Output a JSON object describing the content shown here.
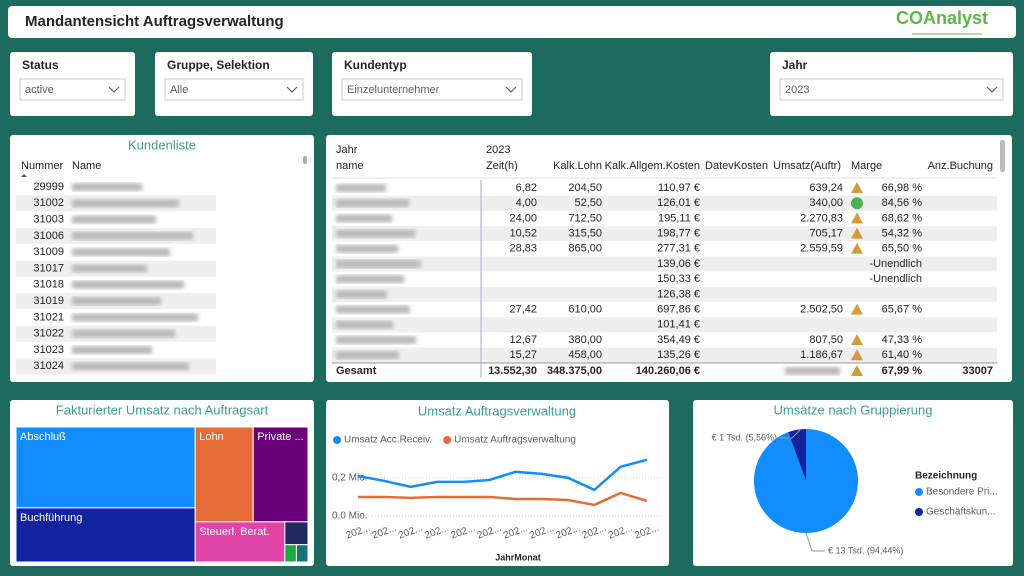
{
  "header": {
    "title": "Mandantensicht Auftragsverwaltung",
    "logo": "COAnalyst"
  },
  "filters": [
    {
      "label": "Status",
      "value": "active"
    },
    {
      "label": "Gruppe, Selektion",
      "value": "Alle"
    },
    {
      "label": "Kundentyp",
      "value": "Einzelunternehmer"
    },
    {
      "label": "Jahr",
      "value": "2023"
    }
  ],
  "customer_list": {
    "title": "Kundenliste",
    "columns": [
      "Nummer",
      "Name"
    ],
    "numbers": [
      29999,
      31002,
      31003,
      31006,
      31009,
      31017,
      31018,
      31019,
      31021,
      31022,
      31023,
      31024
    ]
  },
  "table": {
    "header_top": [
      "Jahr",
      "2023"
    ],
    "columns": [
      "name",
      "Zeit(h)",
      "Kalk.Lohn",
      "Kalk.Allgem.Kosten",
      "DatevKosten",
      "Umsatz(Auftr)",
      "Marge",
      "Anz.Buchung"
    ],
    "rows": [
      [
        "6,82",
        "204,50",
        "110,97 €",
        null,
        "639,24",
        "66,98 %",
        null
      ],
      [
        "4,00",
        "52,50",
        "126,01 €",
        null,
        "340,00",
        "84,56 %",
        null
      ],
      [
        "24,00",
        "712,50",
        "195,11 €",
        null,
        "2.270,83",
        "68,62 %",
        null
      ],
      [
        "10,52",
        "315,50",
        "198,77 €",
        null,
        "705,17",
        "54,32 %",
        null
      ],
      [
        "28,83",
        "865,00",
        "277,31 €",
        null,
        "2.559,59",
        "65,50 %",
        null
      ],
      [
        null,
        null,
        "139,06 €",
        null,
        null,
        "-Unendlich",
        null
      ],
      [
        null,
        null,
        "150,33 €",
        null,
        null,
        "-Unendlich",
        null
      ],
      [
        null,
        null,
        "126,38 €",
        null,
        null,
        null,
        null
      ],
      [
        "27,42",
        "610,00",
        "697,86 €",
        null,
        "2.502,50",
        "65,67 %",
        null
      ],
      [
        null,
        null,
        "101,41 €",
        null,
        null,
        null,
        null
      ],
      [
        "12,67",
        "380,00",
        "354,49 €",
        null,
        "807,50",
        "47,33 %",
        null
      ],
      [
        "15,27",
        "458,00",
        "135,26 €",
        null,
        "1.186,67",
        "61,40 %",
        null
      ]
    ],
    "icons": [
      "triangle",
      "circle",
      "triangle",
      "triangle",
      "triangle",
      null,
      null,
      null,
      "triangle",
      null,
      "triangle",
      "triangle"
    ],
    "total_label": "Gesamt",
    "total": [
      "13.552,30",
      "348.375,00",
      "140.260,06 €",
      null,
      null,
      "67,99 %",
      "33007"
    ],
    "total_icon": "triangle",
    "icon_colors": {
      "triangle": "#D39B3D",
      "circle": "#4CAF50"
    }
  },
  "treemap": {
    "type": "treemap",
    "title": "Fakturierter Umsatz nach Auftragsart",
    "labels": [
      "Abschluß",
      "Buchführung",
      "Lohn",
      "Private ...",
      "Steuerl. Berat.",
      null,
      null,
      null
    ],
    "values": [
      14500,
      9700,
      5500,
      5200,
      3600,
      530,
      200,
      200
    ],
    "colors": [
      "#118DFF",
      "#12239E",
      "#E66C37",
      "#6B007B",
      "#E044A7",
      "#1F2B5E",
      "#1AAB40",
      "#197278"
    ]
  },
  "line_chart": {
    "type": "line",
    "title": "Umsatz Auftragsverwaltung",
    "x_label": "JahrMonat",
    "categories": [
      "202...",
      "202...",
      "202...",
      "202...",
      "202...",
      "202...",
      "202...",
      "202...",
      "202...",
      "202...",
      "202...",
      "202..."
    ],
    "series": [
      {
        "name": "Umsatz Acc.Receiv.",
        "color": "#118DFF",
        "values": [
          210000,
          184000,
          153000,
          179000,
          179000,
          189000,
          232000,
          221000,
          200000,
          137000,
          258000,
          295000
        ]
      },
      {
        "name": "Umsatz Auftragsverwaltung",
        "color": "#E66C37",
        "values": [
          100000,
          100000,
          95000,
          100000,
          100000,
          100000,
          89000,
          89000,
          84000,
          58000,
          121000,
          79000
        ]
      }
    ],
    "ylim": [
      0,
      320000
    ],
    "yticks": [
      {
        "value": 0,
        "label": "0,0 Mio."
      },
      {
        "value": 200000,
        "label": "0,2 Mio."
      }
    ],
    "grid": true
  },
  "pie_chart": {
    "type": "pie",
    "title": "Umsätze nach Gruppierung",
    "legend_title": "Bezeichnung",
    "categories": [
      "Besondere Pri...",
      "Geschäftskun..."
    ],
    "values": [
      94.44,
      5.56
    ],
    "value_labels": [
      "€ 13 Tsd. (94,44%)",
      "€ 1 Tsd. (5,56%)"
    ],
    "colors": [
      "#118DFF",
      "#12239E"
    ]
  }
}
